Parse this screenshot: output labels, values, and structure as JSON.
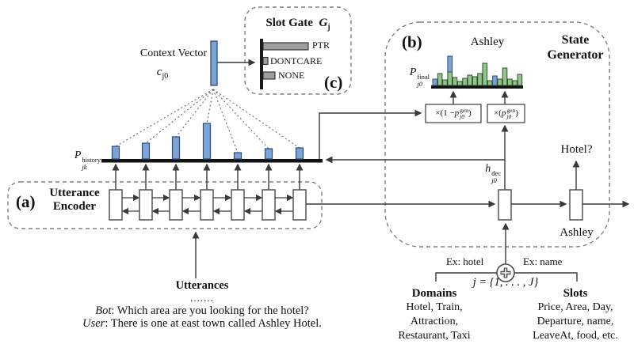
{
  "colors": {
    "bar_blue": "#7ca3d6",
    "bar_blue_border": "#2e4d77",
    "bar_green": "#93c48b",
    "bar_green_border": "#31502e",
    "bar_gray": "#9e9e9e",
    "bar_gray_border": "#2a2a2a",
    "line": "#3a3a3a",
    "axis": "#111111",
    "dashed_border": "#808080"
  },
  "panels": {
    "encoder": {
      "label": "(a)",
      "title": [
        "Utterance",
        "Encoder"
      ]
    },
    "state_generator": {
      "label": "(b)",
      "title": [
        "State",
        "Generator"
      ]
    },
    "slot_gate": {
      "label": "(c)",
      "title": "Slot Gate",
      "symbol": {
        "base": "G",
        "sub": "j"
      }
    }
  },
  "slot_gate_chart": {
    "type": "bar",
    "orientation": "horizontal",
    "categories": [
      "PTR",
      "DONTCARE",
      "NONE"
    ],
    "values": [
      57,
      6,
      15
    ]
  },
  "context_vector": {
    "label": "Context Vector",
    "symbol": {
      "base": "c",
      "sub": "j0"
    }
  },
  "history_chart": {
    "type": "bar",
    "label": {
      "base": "P",
      "sup": "history",
      "sub": "jk"
    },
    "centers": [
      146,
      184,
      222,
      261,
      300,
      339,
      378
    ],
    "heights": [
      16,
      20,
      28,
      45,
      8,
      13,
      14
    ]
  },
  "final_chart": {
    "type": "bar",
    "word": "Ashley",
    "label": {
      "base": "P",
      "sup": "final",
      "sub": "j0"
    },
    "bars": [
      {
        "h": 8,
        "c": "blue"
      },
      {
        "h": 15,
        "c": "green"
      },
      {
        "h": 7,
        "c": "green"
      },
      {
        "h": 17,
        "c": "green",
        "stack_h": 20,
        "stack_c": "blue"
      },
      {
        "h": 10,
        "c": "green"
      },
      {
        "h": 5,
        "c": "green"
      },
      {
        "h": 9,
        "c": "green"
      },
      {
        "h": 13,
        "c": "green"
      },
      {
        "h": 11,
        "c": "green"
      },
      {
        "h": 15,
        "c": "green"
      },
      {
        "h": 28,
        "c": "green"
      },
      {
        "h": 6,
        "c": "green"
      },
      {
        "h": 12,
        "c": "blue"
      },
      {
        "h": 8,
        "c": "green"
      },
      {
        "h": 22,
        "c": "green"
      },
      {
        "h": 8,
        "c": "green"
      },
      {
        "h": 6,
        "c": "green"
      },
      {
        "h": 14,
        "c": "green"
      }
    ]
  },
  "gate_ops": {
    "left": {
      "pre": "×(1 − ",
      "base": "p",
      "sup": "gen",
      "sub": "j0",
      "post": ")"
    },
    "right": {
      "pre": "×(",
      "base": "p",
      "sup": "gen",
      "sub": "j0",
      "post": ")"
    }
  },
  "decoder": {
    "h_label": {
      "base": "h",
      "sup": "dec",
      "sub": "j0"
    },
    "output_word": "Hotel?",
    "input_word": "Ashley"
  },
  "inputs": {
    "ex_left": "Ex: hotel",
    "ex_right": "Ex: name",
    "j_expr": "j = {1, . . . , J}",
    "domains": {
      "title": "Domains",
      "lines": [
        "Hotel, Train,",
        "Attraction,",
        "Restaurant, Taxi"
      ]
    },
    "slots": {
      "title": "Slots",
      "lines": [
        "Price, Area, Day,",
        "Departure, name,",
        "LeaveAt, food, etc."
      ]
    }
  },
  "utterances": {
    "title": "Utterances",
    "ellipsis": ".......",
    "bot_speaker": "Bot",
    "bot_text": ": Which area are you looking for the hotel?",
    "user_speaker": "User",
    "user_text": ": There is one at east town called Ashley Hotel."
  }
}
